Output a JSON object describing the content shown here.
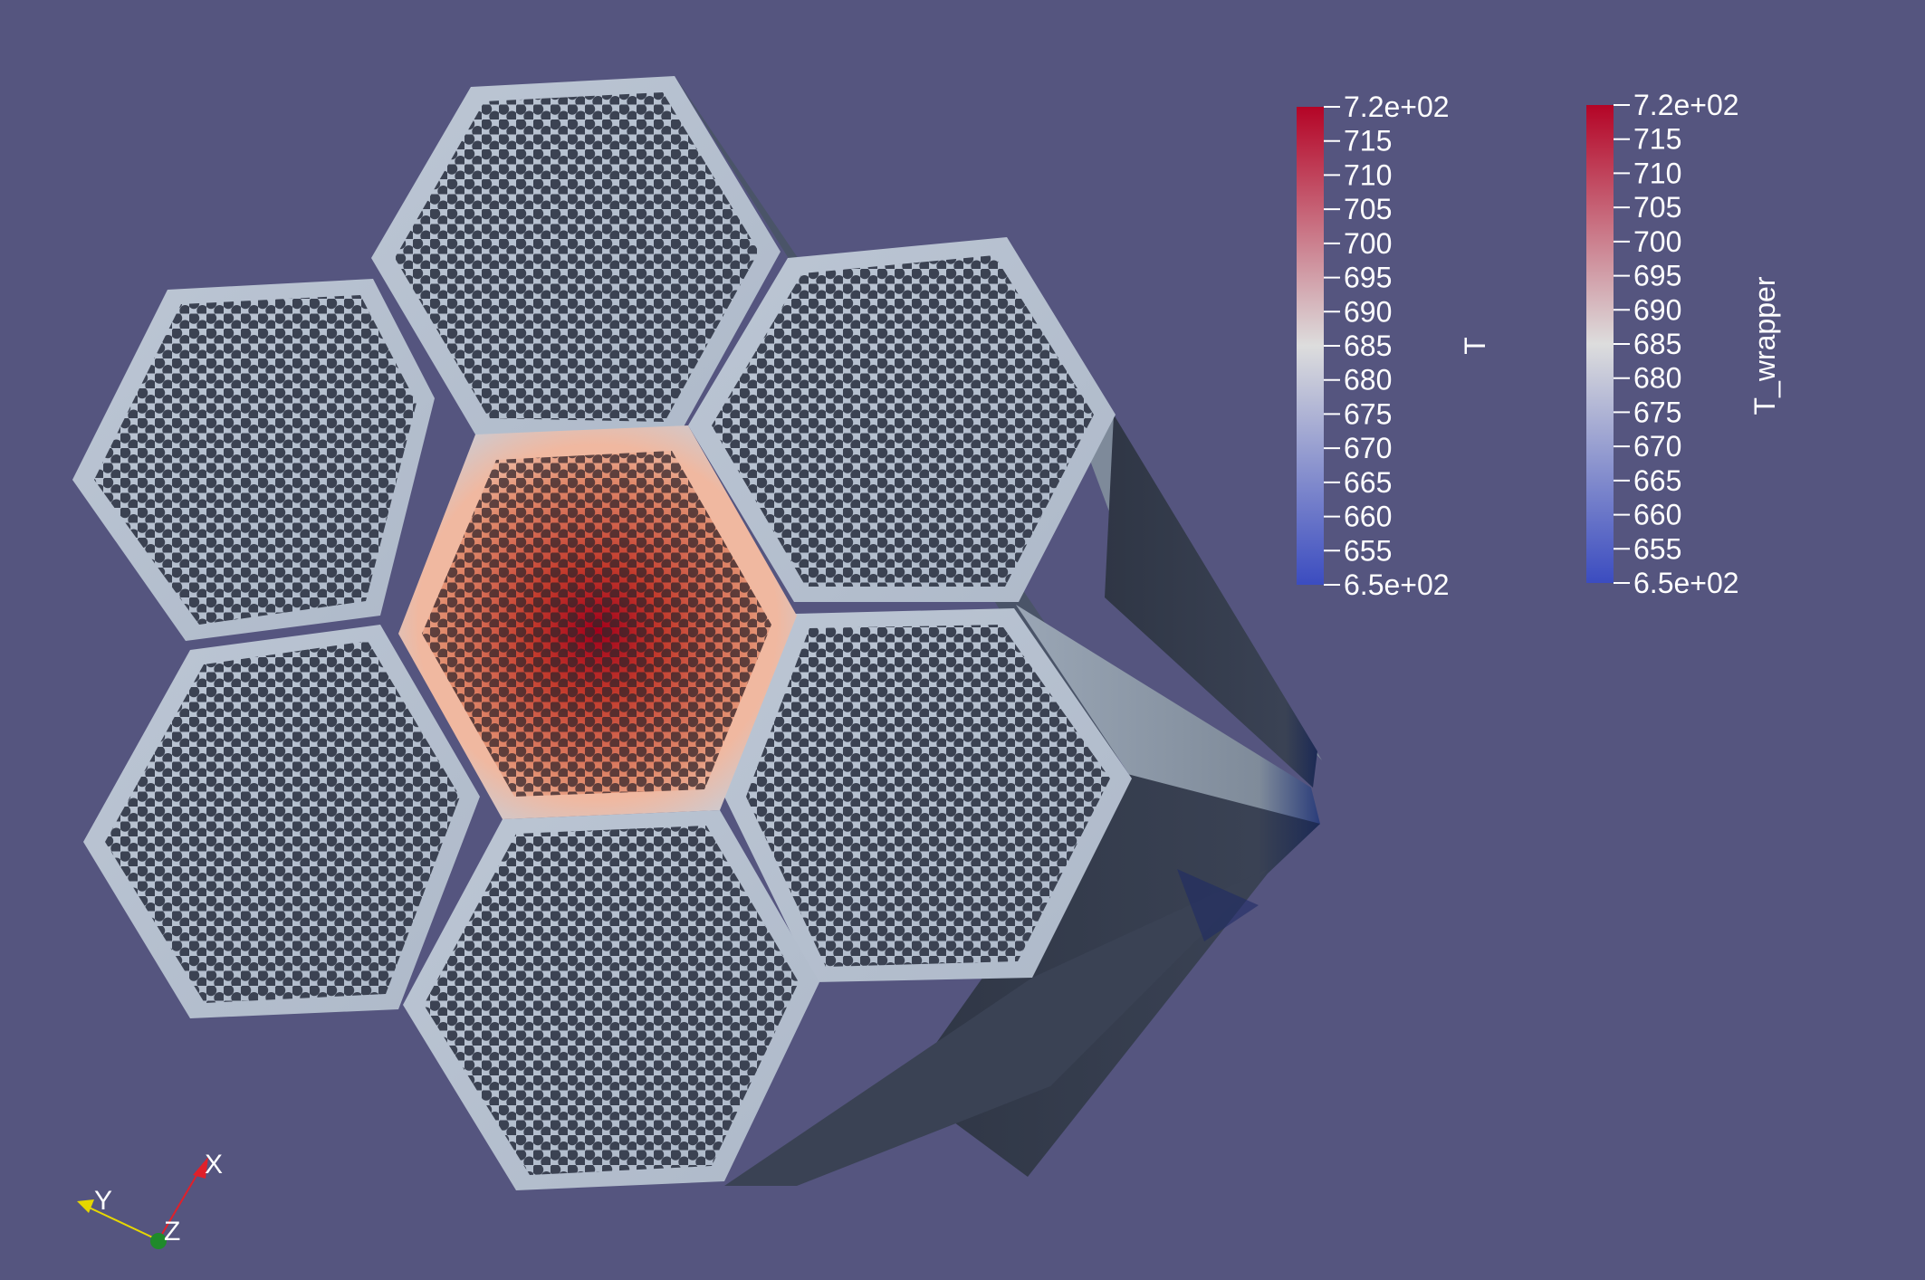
{
  "viewport": {
    "background_color": "#55557f",
    "geometry": "hexagonal fuel assembly cluster (7 ducts, pin lattice)",
    "center_assembly_color": "#d04a30",
    "outer_assembly_color": "#b7c3d3",
    "pin_hole_color": "#3b4252",
    "duct_side_color": "#3a4252"
  },
  "color_legends": [
    {
      "field": "T",
      "title": "T",
      "colormap": "Cool to Warm",
      "min_color": "#3b4cc0",
      "mid_color": "#dddddd",
      "max_color": "#b40426",
      "range": [
        650,
        720
      ],
      "labels": [
        "7.2e+02",
        "715",
        "710",
        "705",
        "700",
        "695",
        "690",
        "685",
        "680",
        "675",
        "670",
        "665",
        "660",
        "655",
        "6.5e+02"
      ]
    },
    {
      "field": "T_wrapper",
      "title": "T_wrapper",
      "colormap": "Cool to Warm",
      "min_color": "#3b4cc0",
      "mid_color": "#dddddd",
      "max_color": "#b40426",
      "range": [
        650,
        720
      ],
      "labels": [
        "7.2e+02",
        "715",
        "710",
        "705",
        "700",
        "695",
        "690",
        "685",
        "680",
        "675",
        "670",
        "665",
        "660",
        "655",
        "6.5e+02"
      ]
    }
  ],
  "orientation_axes": {
    "x": {
      "label": "X",
      "color": "#e0202a"
    },
    "y": {
      "label": "Y",
      "color": "#e6d700"
    },
    "z": {
      "label": "Z",
      "color": "#1f8a2a"
    }
  }
}
